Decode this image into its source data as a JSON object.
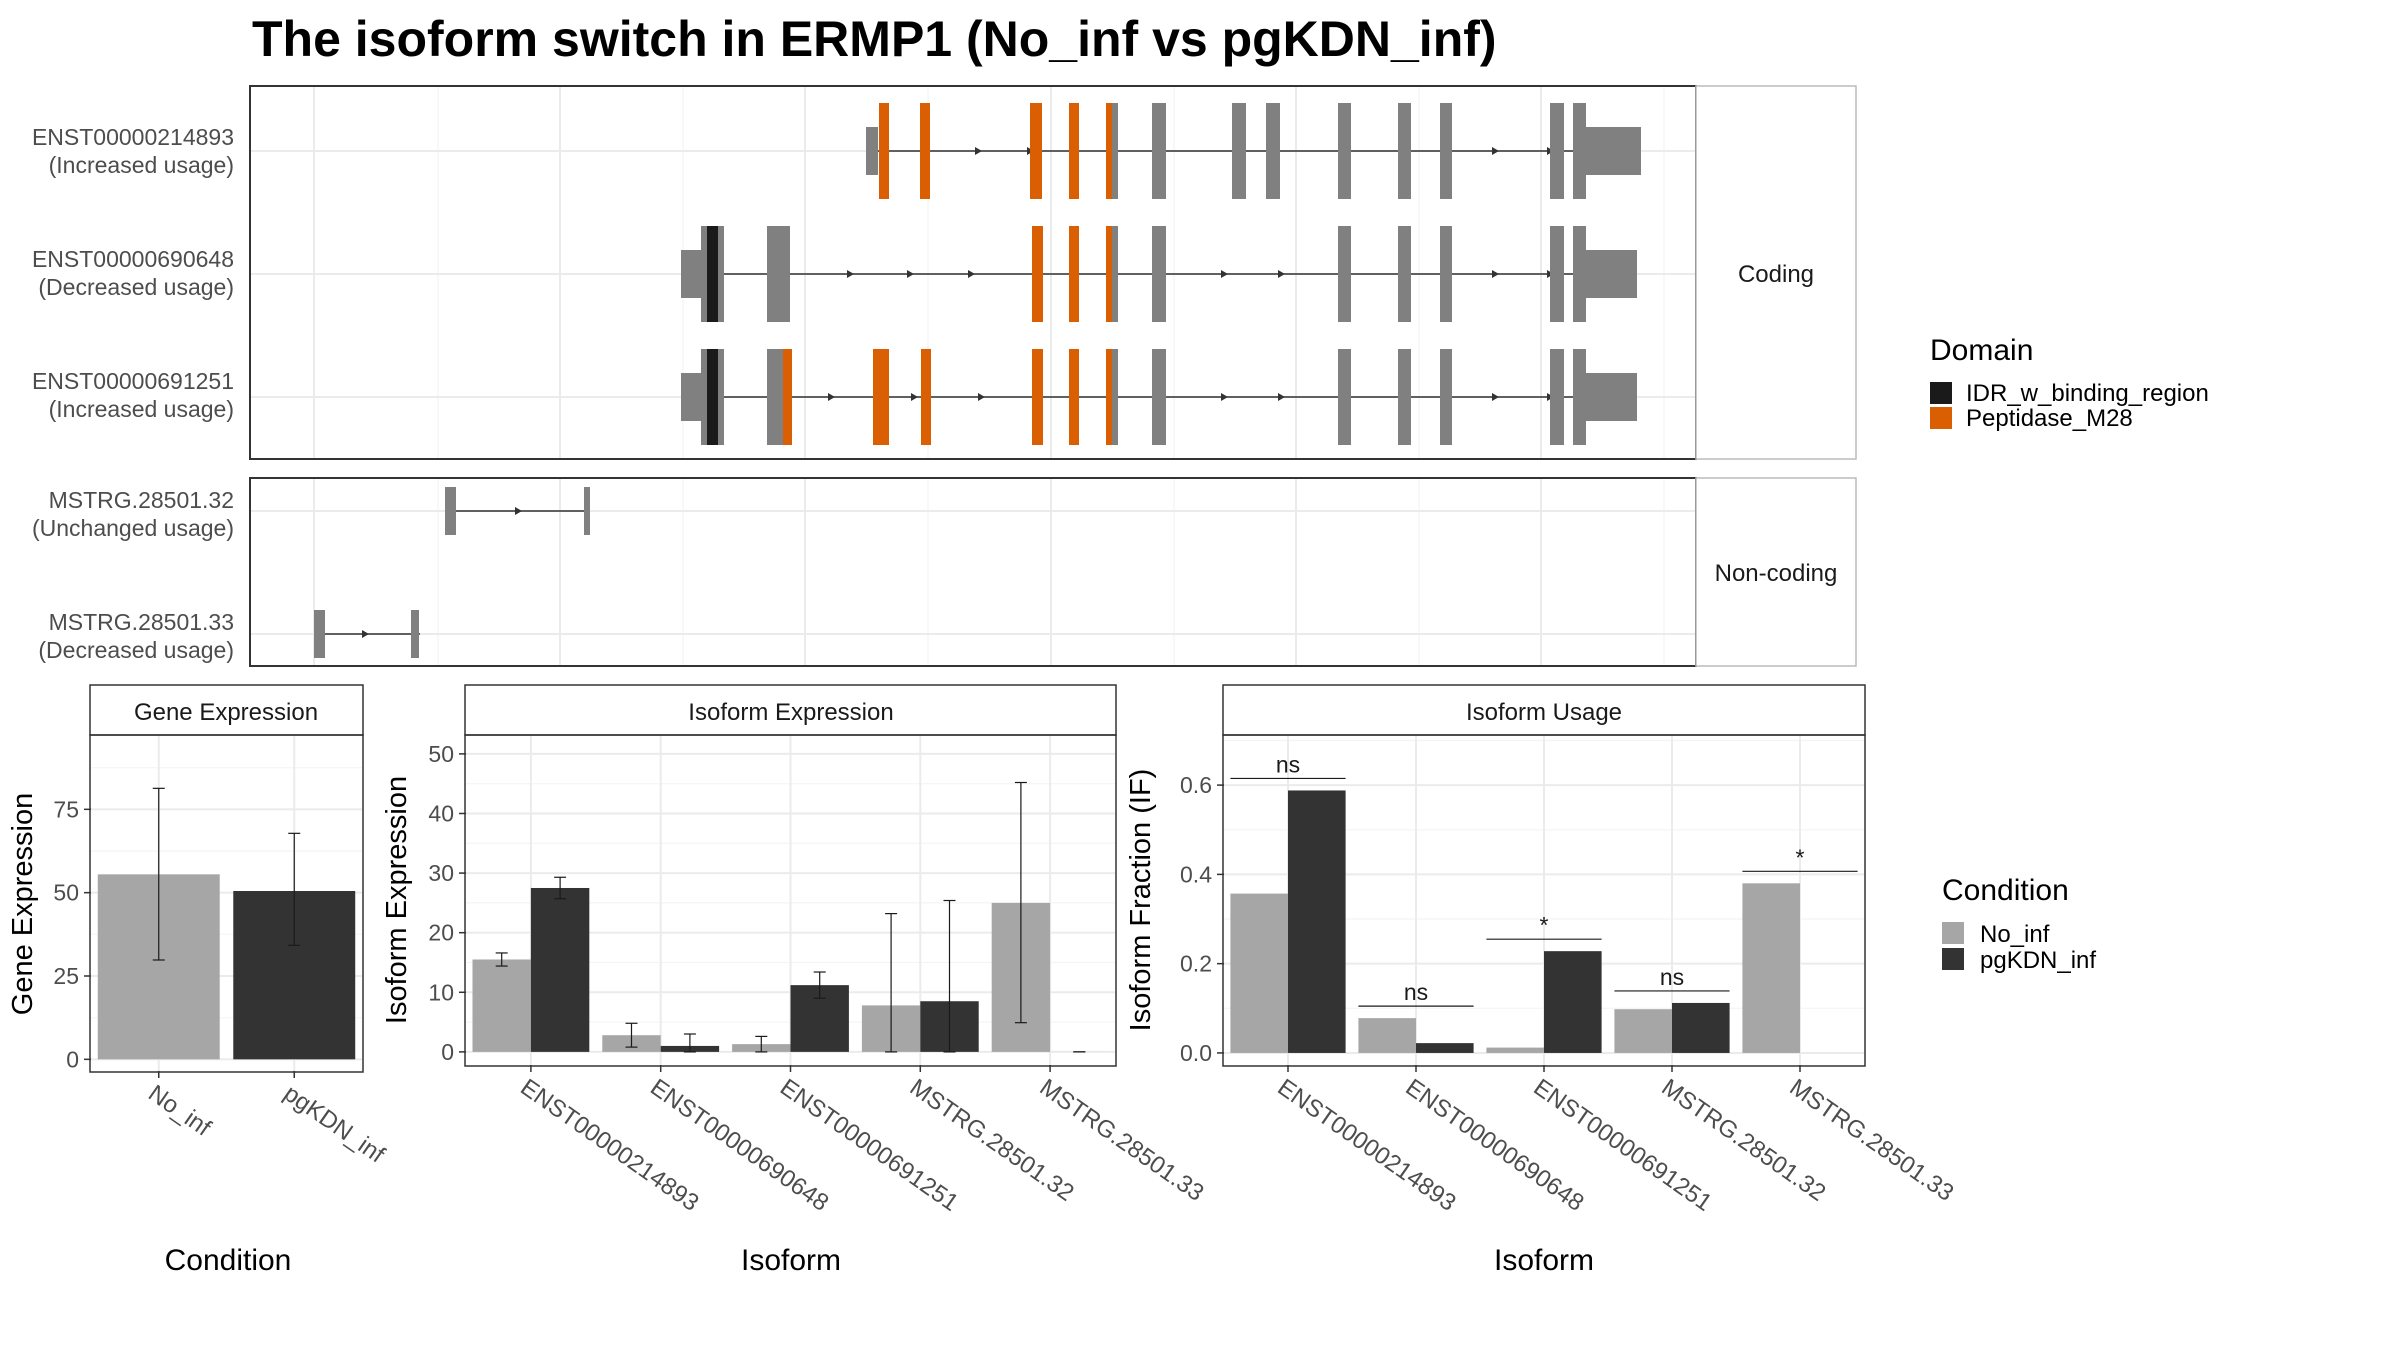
{
  "chart_data": [
    {
      "type": "gene-structure",
      "title": "The isoform switch in ERMP1 (No_inf vs pgKDN_inf)",
      "legend": {
        "title": "Domain",
        "position": "right",
        "entries": [
          {
            "label": "IDR_w_binding_region",
            "color": "#1a1a1a"
          },
          {
            "label": "Peptidase_M28",
            "color": "#d95f02"
          }
        ]
      },
      "colors": {
        "exon": "#808080",
        "intron": "#333333",
        "panel_border": "#333333",
        "grid": "#ebebeb"
      },
      "grid": true,
      "panels": [
        {
          "label": "Coding",
          "isoforms": [
            {
              "name": "ENST00000214893",
              "usage": "(Increased usage)"
            },
            {
              "name": "ENST00000690648",
              "usage": "(Decreased usage)"
            },
            {
              "name": "ENST00000691251",
              "usage": "(Increased usage)"
            }
          ]
        },
        {
          "label": "Non-coding",
          "isoforms": [
            {
              "name": "MSTRG.28501.32",
              "usage": "(Unchanged usage)"
            },
            {
              "name": "MSTRG.28501.33",
              "usage": "(Decreased usage)"
            }
          ]
        }
      ]
    },
    {
      "type": "bar",
      "title": "Gene Expression",
      "xlabel": "Condition",
      "ylabel": "Gene Expression",
      "categories": [
        "No_inf",
        "pgKDN_inf"
      ],
      "values": [
        55.5,
        50.5
      ],
      "error_low": [
        29.8,
        34.2
      ],
      "error_high": [
        81.3,
        67.8
      ],
      "colors": [
        "#a6a6a6",
        "#333333"
      ],
      "ylim": [
        -3.5,
        97
      ],
      "yticks": [
        0,
        25,
        50,
        75
      ],
      "grid": true
    },
    {
      "type": "bar",
      "title": "Isoform Expression",
      "xlabel": "Isoform",
      "ylabel": "Isoform Expression",
      "categories": [
        "ENST00000214893",
        "ENST00000690648",
        "ENST00000691251",
        "MSTRG.28501.32",
        "MSTRG.28501.33"
      ],
      "series": [
        {
          "name": "No_inf",
          "color": "#a6a6a6",
          "values": [
            15.5,
            2.8,
            1.3,
            7.8,
            25.0
          ],
          "error_low": [
            14.4,
            0.8,
            0.0,
            0.0,
            4.9
          ],
          "error_high": [
            16.6,
            4.8,
            2.6,
            23.2,
            45.2
          ]
        },
        {
          "name": "pgKDN_inf",
          "color": "#333333",
          "values": [
            27.5,
            1.0,
            11.2,
            8.5,
            0.0
          ],
          "error_low": [
            25.7,
            0.0,
            9.0,
            0.0,
            0.0
          ],
          "error_high": [
            29.3,
            3.0,
            13.4,
            25.4,
            0.0
          ]
        }
      ],
      "ylim": [
        -2.2,
        53
      ],
      "yticks": [
        0,
        10,
        20,
        30,
        40,
        50
      ],
      "grid": true
    },
    {
      "type": "bar",
      "title": "Isoform Usage",
      "xlabel": "Isoform",
      "ylabel": "Isoform Fraction (IF)",
      "categories": [
        "ENST00000214893",
        "ENST00000690648",
        "ENST00000691251",
        "MSTRG.28501.32",
        "MSTRG.28501.33"
      ],
      "series": [
        {
          "name": "No_inf",
          "color": "#a6a6a6",
          "values": [
            0.357,
            0.078,
            0.012,
            0.098,
            0.38
          ]
        },
        {
          "name": "pgKDN_inf",
          "color": "#333333",
          "values": [
            0.588,
            0.022,
            0.228,
            0.112,
            0.0
          ]
        }
      ],
      "significance": [
        "ns",
        "ns",
        "*",
        "ns",
        "*"
      ],
      "ylim": [
        -0.027,
        0.71
      ],
      "yticks": [
        0.0,
        0.2,
        0.4,
        0.6
      ],
      "grid": true
    }
  ],
  "condition_legend": {
    "title": "Condition",
    "position": "right",
    "entries": [
      {
        "label": "No_inf",
        "color": "#a6a6a6"
      },
      {
        "label": "pgKDN_inf",
        "color": "#333333"
      }
    ]
  }
}
